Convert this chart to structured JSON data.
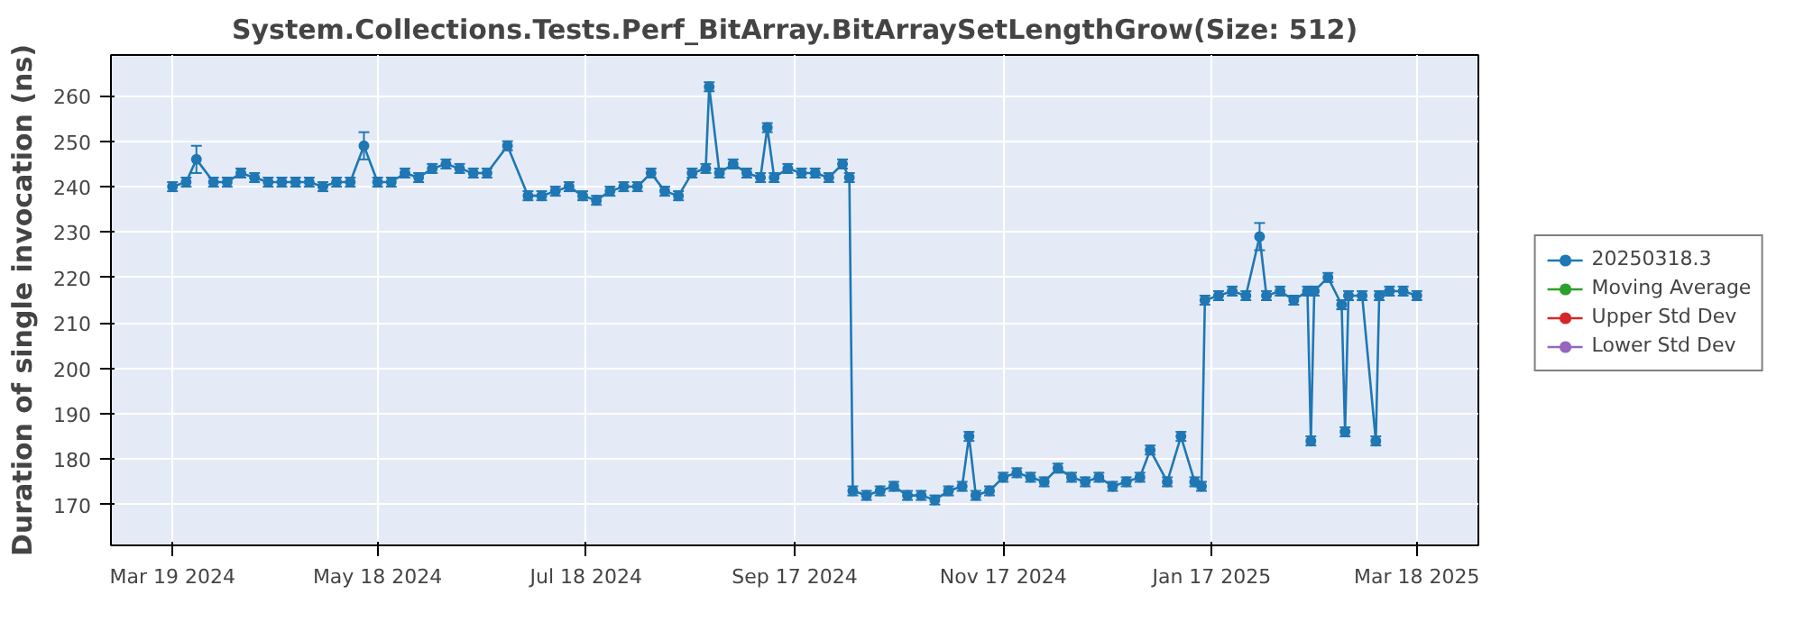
{
  "chart_data": {
    "type": "line",
    "title": "System.Collections.Tests.Perf_BitArray.BitArraySetLengthGrow(Size: 512)",
    "ylabel": "Duration of single invocation (ns)",
    "xlim": [
      "2024-03-01",
      "2025-04-05"
    ],
    "ylim": [
      161,
      269
    ],
    "xticks": [
      {
        "value": "2024-03-19",
        "label": "Mar 19 2024"
      },
      {
        "value": "2024-05-18",
        "label": "May 18 2024"
      },
      {
        "value": "2024-07-18",
        "label": "Jul 18 2024"
      },
      {
        "value": "2024-09-17",
        "label": "Sep 17 2024"
      },
      {
        "value": "2024-11-17",
        "label": "Nov 17 2024"
      },
      {
        "value": "2025-01-17",
        "label": "Jan 17 2025"
      },
      {
        "value": "2025-03-18",
        "label": "Mar 18 2025"
      }
    ],
    "yticks": [
      170,
      180,
      190,
      200,
      210,
      220,
      230,
      240,
      250,
      260
    ],
    "grid": true,
    "legend": "right",
    "marker": "circle",
    "line_style": "solid",
    "series": [
      {
        "name": "20250318.3",
        "color": "#1f77b4",
        "x": [
          "2024-03-19",
          "2024-03-23",
          "2024-03-26",
          "2024-03-31",
          "2024-04-04",
          "2024-04-08",
          "2024-04-12",
          "2024-04-16",
          "2024-04-20",
          "2024-04-24",
          "2024-04-28",
          "2024-05-02",
          "2024-05-06",
          "2024-05-10",
          "2024-05-14",
          "2024-05-18",
          "2024-05-22",
          "2024-05-26",
          "2024-05-30",
          "2024-06-03",
          "2024-06-07",
          "2024-06-11",
          "2024-06-15",
          "2024-06-19",
          "2024-06-25",
          "2024-07-01",
          "2024-07-05",
          "2024-07-09",
          "2024-07-13",
          "2024-07-17",
          "2024-07-21",
          "2024-07-25",
          "2024-07-29",
          "2024-08-02",
          "2024-08-06",
          "2024-08-10",
          "2024-08-14",
          "2024-08-18",
          "2024-08-22",
          "2024-08-23",
          "2024-08-26",
          "2024-08-30",
          "2024-09-03",
          "2024-09-07",
          "2024-09-09",
          "2024-09-11",
          "2024-09-15",
          "2024-09-19",
          "2024-09-23",
          "2024-09-27",
          "2024-10-01",
          "2024-10-03",
          "2024-10-04",
          "2024-10-08",
          "2024-10-12",
          "2024-10-16",
          "2024-10-20",
          "2024-10-24",
          "2024-10-28",
          "2024-11-01",
          "2024-11-05",
          "2024-11-07",
          "2024-11-09",
          "2024-11-13",
          "2024-11-17",
          "2024-11-21",
          "2024-11-25",
          "2024-11-29",
          "2024-12-03",
          "2024-12-07",
          "2024-12-11",
          "2024-12-15",
          "2024-12-19",
          "2024-12-23",
          "2024-12-27",
          "2024-12-30",
          "2025-01-04",
          "2025-01-08",
          "2025-01-12",
          "2025-01-14",
          "2025-01-15",
          "2025-01-19",
          "2025-01-23",
          "2025-01-27",
          "2025-01-31",
          "2025-02-02",
          "2025-02-06",
          "2025-02-10",
          "2025-02-14",
          "2025-02-15",
          "2025-02-16",
          "2025-02-20",
          "2025-02-24",
          "2025-02-25",
          "2025-02-26",
          "2025-03-02",
          "2025-03-06",
          "2025-03-07",
          "2025-03-10",
          "2025-03-14",
          "2025-03-18"
        ],
        "values": [
          240,
          241,
          246,
          241,
          241,
          243,
          242,
          241,
          241,
          241,
          241,
          240,
          241,
          241,
          249,
          241,
          241,
          243,
          242,
          244,
          245,
          244,
          243,
          243,
          249,
          238,
          238,
          239,
          240,
          238,
          237,
          239,
          240,
          240,
          243,
          239,
          238,
          243,
          244,
          262,
          243,
          245,
          243,
          242,
          253,
          242,
          244,
          243,
          243,
          242,
          245,
          242,
          173,
          172,
          173,
          174,
          172,
          172,
          171,
          173,
          174,
          185,
          172,
          173,
          176,
          177,
          176,
          175,
          178,
          176,
          175,
          176,
          174,
          175,
          176,
          182,
          175,
          185,
          175,
          174,
          215,
          216,
          217,
          216,
          229,
          216,
          217,
          215,
          217,
          184,
          217,
          220,
          214,
          186,
          216,
          216,
          184,
          216,
          217,
          217,
          216
        ],
        "errors": [
          1,
          1,
          3,
          1,
          1,
          1,
          1,
          1,
          1,
          1,
          1,
          1,
          1,
          1,
          3,
          1,
          1,
          1,
          1,
          1,
          1,
          1,
          1,
          1,
          1,
          1,
          1,
          1,
          1,
          1,
          1,
          1,
          1,
          1,
          1,
          1,
          1,
          1,
          1,
          1,
          1,
          1,
          1,
          1,
          1,
          1,
          1,
          1,
          1,
          1,
          1,
          1,
          1,
          1,
          1,
          1,
          1,
          1,
          1,
          1,
          1,
          1,
          1,
          1,
          1,
          1,
          1,
          1,
          1,
          1,
          1,
          1,
          1,
          1,
          1,
          1,
          1,
          1,
          1,
          1,
          1,
          1,
          1,
          1,
          3,
          1,
          1,
          1,
          1,
          1,
          1,
          1,
          1,
          1,
          1,
          1,
          1,
          1,
          1,
          1,
          1
        ]
      },
      {
        "name": "Moving Average",
        "color": "#2ca02c"
      },
      {
        "name": "Upper Std Dev",
        "color": "#d62728"
      },
      {
        "name": "Lower Std Dev",
        "color": "#9467bd"
      }
    ]
  }
}
